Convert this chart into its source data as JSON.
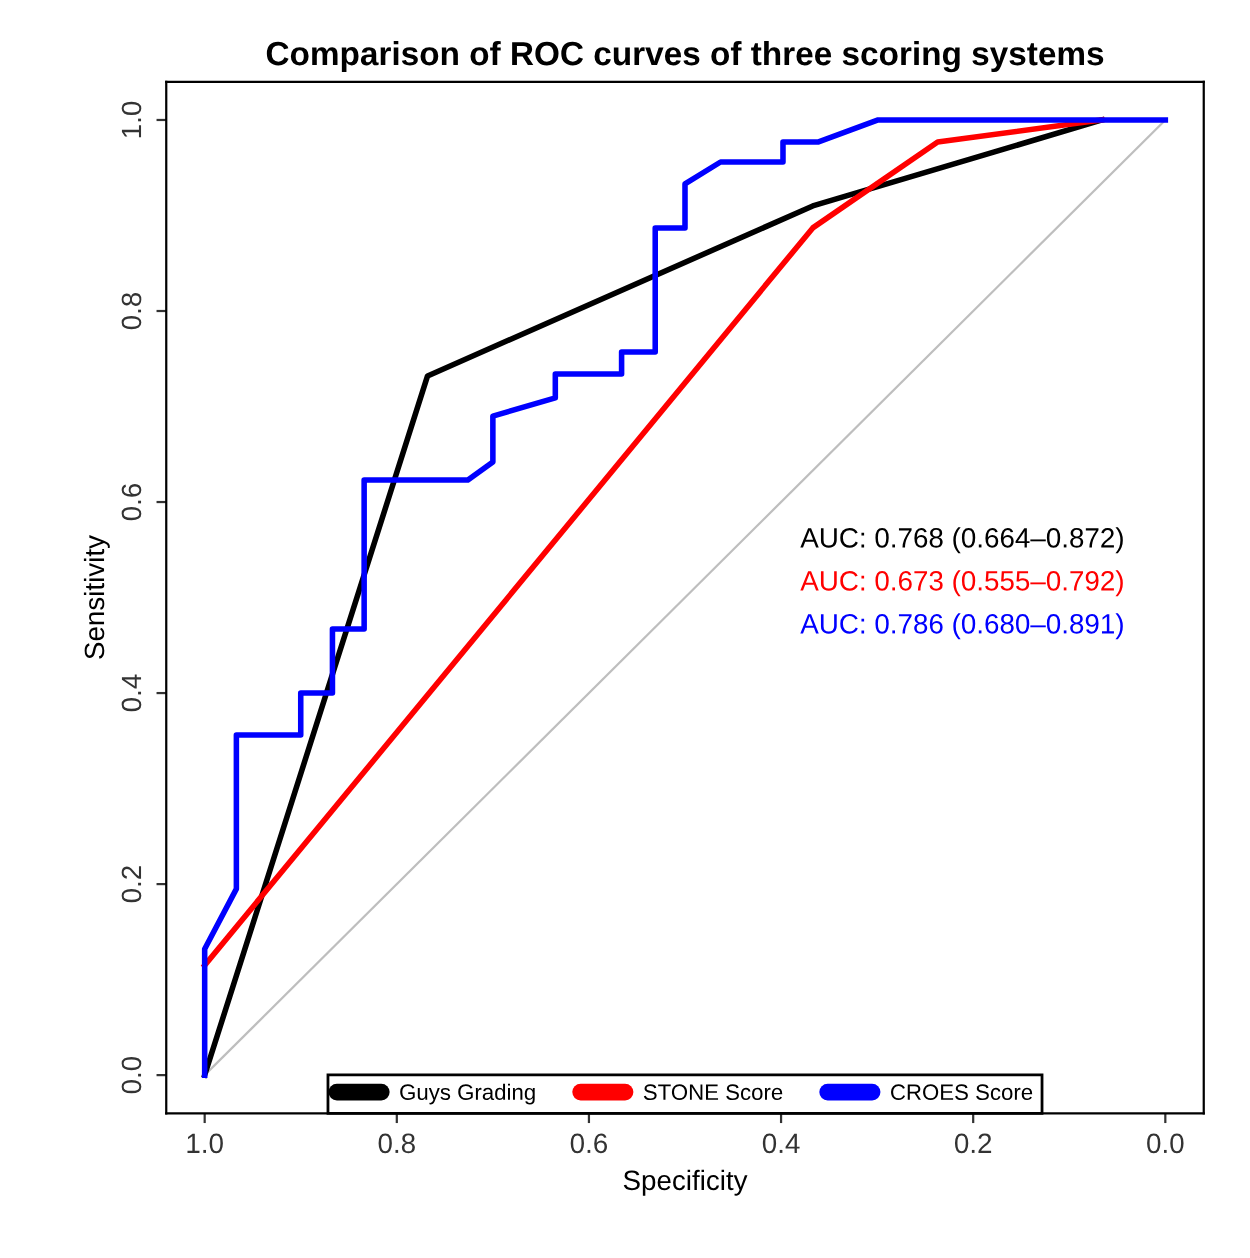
{
  "chart_data": {
    "type": "line",
    "title": "Comparison of ROC curves of three scoring systems",
    "xlabel": "Specificity",
    "ylabel": "Sensitivity",
    "xlim": [
      1.04,
      -0.04
    ],
    "ylim": [
      -0.04,
      1.04
    ],
    "xticks": [
      {
        "value": 1,
        "label": "1.0"
      },
      0.8,
      0.6,
      0.4,
      0.2,
      {
        "value": 0,
        "label": "0.0"
      }
    ],
    "yticks": [
      {
        "value": 0,
        "label": "0.0"
      },
      0.2,
      0.4,
      0.6,
      0.8,
      {
        "value": 1,
        "label": "1.0"
      }
    ],
    "grid": false,
    "legend": "bottom",
    "marker": "none",
    "line_style": "solid",
    "series": [
      {
        "color": "#bebebe",
        "x": [
          1.0,
          0.0
        ],
        "values": [
          0.0,
          1.0
        ]
      },
      {
        "name": "Guys Grading",
        "color": "#000000",
        "x": [
          1.0,
          0.768,
          0.367,
          0.066
        ],
        "values": [
          0.0,
          0.732,
          0.91,
          1.0
        ]
      },
      {
        "name": "STONE Score",
        "color": "#ff0000",
        "x": [
          1.0,
          0.367,
          0.237,
          0.066
        ],
        "values": [
          0.115,
          0.887,
          0.977,
          1.0
        ]
      },
      {
        "name": "CROES Score",
        "color": "#0000ff",
        "x": [
          1.0,
          1.0,
          0.967,
          0.967,
          0.9,
          0.9,
          0.867,
          0.867,
          0.834,
          0.834,
          0.726,
          0.7,
          0.7,
          0.635,
          0.635,
          0.566,
          0.566,
          0.531,
          0.531,
          0.5,
          0.5,
          0.463,
          0.398,
          0.398,
          0.361,
          0.299,
          0.0
        ],
        "values": [
          0.0,
          0.132,
          0.195,
          0.356,
          0.356,
          0.4,
          0.4,
          0.467,
          0.467,
          0.623,
          0.623,
          0.642,
          0.69,
          0.709,
          0.734,
          0.734,
          0.757,
          0.757,
          0.887,
          0.887,
          0.933,
          0.956,
          0.956,
          0.977,
          0.977,
          1.0,
          1.0
        ]
      }
    ],
    "annotations": [
      "AUC: 0.768 (0.664–0.872)",
      "AUC: 0.673 (0.555–0.792)",
      "AUC: 0.786 (0.680–0.891)"
    ]
  }
}
